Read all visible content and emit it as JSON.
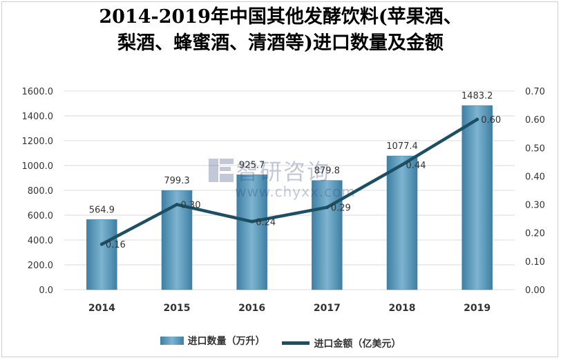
{
  "title_lines": [
    "2014-2019年中国其他发酵饮料(苹果酒、",
    "梨酒、蜂蜜酒、清酒等)进口数量及金额"
  ],
  "watermark": {
    "brand": "智研咨询",
    "url": "www.chyxx.com"
  },
  "colors": {
    "bar": "#5a9bbd",
    "bar_edge": "#3f7fa3",
    "line": "#1c4f63"
  },
  "legend": {
    "bar_label": "进口数量（万升）",
    "line_label": "进口金额（亿美元）"
  },
  "chart_data": {
    "type": "bar+line",
    "categories": [
      "2014",
      "2015",
      "2016",
      "2017",
      "2018",
      "2019"
    ],
    "series": [
      {
        "name": "进口数量（万升）",
        "type": "bar",
        "axis": "left",
        "values": [
          564.9,
          799.3,
          925.7,
          879.8,
          1077.4,
          1483.2
        ],
        "labels": [
          "564.9",
          "799.3",
          "925.7",
          "879.8",
          "1077.4",
          "1483.2"
        ]
      },
      {
        "name": "进口金额（亿美元）",
        "type": "line",
        "axis": "right",
        "values": [
          0.16,
          0.3,
          0.24,
          0.29,
          0.44,
          0.6
        ],
        "labels": [
          "0.16",
          "0.30",
          "0.24",
          "0.29",
          "0.44",
          "0.60"
        ]
      }
    ],
    "y_left": {
      "min": 0,
      "max": 1600,
      "ticks": [
        "0.0",
        "200.0",
        "400.0",
        "600.0",
        "800.0",
        "1000.0",
        "1200.0",
        "1400.0",
        "1600.0"
      ]
    },
    "y_right": {
      "min": 0,
      "max": 0.7,
      "ticks": [
        "0.00",
        "0.10",
        "0.20",
        "0.30",
        "0.40",
        "0.50",
        "0.60",
        "0.70"
      ]
    },
    "grid": true,
    "legend_position": "bottom"
  }
}
